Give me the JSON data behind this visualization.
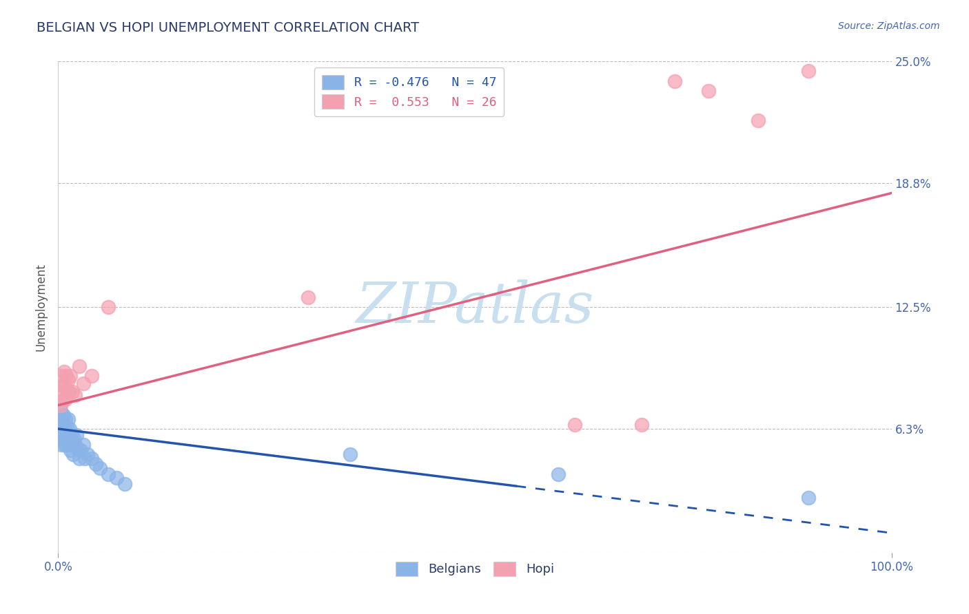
{
  "title": "BELGIAN VS HOPI UNEMPLOYMENT CORRELATION CHART",
  "source": "Source: ZipAtlas.com",
  "ylabel": "Unemployment",
  "xlim": [
    0,
    1.0
  ],
  "ylim": [
    0,
    0.25
  ],
  "yticks": [
    0.0,
    0.063,
    0.125,
    0.188,
    0.25
  ],
  "ytick_labels": [
    "",
    "6.3%",
    "12.5%",
    "18.8%",
    "25.0%"
  ],
  "xtick_labels": [
    "0.0%",
    "100.0%"
  ],
  "belgians_r": -0.476,
  "belgians_n": 47,
  "hopi_r": 0.553,
  "hopi_n": 26,
  "belgian_color": "#8ab4e8",
  "hopi_color": "#f4a0b0",
  "belgian_line_color": "#2255aa",
  "hopi_line_color": "#e06080",
  "background_color": "#ffffff",
  "grid_color": "#bbbbbb",
  "title_color": "#2a3a6a",
  "axis_label_color": "#4466aa",
  "watermark_color": "#c8dff0",
  "belgians_x": [
    0.001,
    0.002,
    0.003,
    0.003,
    0.004,
    0.004,
    0.005,
    0.005,
    0.006,
    0.006,
    0.007,
    0.007,
    0.008,
    0.008,
    0.009,
    0.009,
    0.01,
    0.01,
    0.011,
    0.011,
    0.012,
    0.012,
    0.013,
    0.014,
    0.015,
    0.015,
    0.016,
    0.017,
    0.018,
    0.019,
    0.02,
    0.022,
    0.024,
    0.025,
    0.027,
    0.03,
    0.032,
    0.035,
    0.04,
    0.045,
    0.05,
    0.06,
    0.07,
    0.08,
    0.35,
    0.6,
    0.9
  ],
  "belgians_y": [
    0.063,
    0.058,
    0.072,
    0.065,
    0.06,
    0.055,
    0.068,
    0.063,
    0.07,
    0.058,
    0.065,
    0.06,
    0.055,
    0.063,
    0.058,
    0.068,
    0.06,
    0.055,
    0.063,
    0.058,
    0.068,
    0.06,
    0.055,
    0.063,
    0.058,
    0.052,
    0.06,
    0.055,
    0.05,
    0.058,
    0.055,
    0.06,
    0.053,
    0.048,
    0.052,
    0.055,
    0.048,
    0.05,
    0.048,
    0.045,
    0.043,
    0.04,
    0.038,
    0.035,
    0.05,
    0.04,
    0.028
  ],
  "hopi_x": [
    0.002,
    0.003,
    0.004,
    0.005,
    0.006,
    0.007,
    0.008,
    0.009,
    0.01,
    0.011,
    0.012,
    0.013,
    0.015,
    0.017,
    0.02,
    0.025,
    0.03,
    0.04,
    0.06,
    0.3,
    0.62,
    0.7,
    0.74,
    0.78,
    0.84,
    0.9
  ],
  "hopi_y": [
    0.082,
    0.075,
    0.09,
    0.085,
    0.078,
    0.092,
    0.085,
    0.078,
    0.09,
    0.082,
    0.088,
    0.082,
    0.09,
    0.082,
    0.08,
    0.095,
    0.086,
    0.09,
    0.125,
    0.13,
    0.065,
    0.065,
    0.24,
    0.235,
    0.22,
    0.245
  ],
  "belgian_trend_x": [
    0.0,
    1.0
  ],
  "belgian_trend_y": [
    0.063,
    0.01
  ],
  "belgian_trend_solid_end": 0.55,
  "hopi_trend_x": [
    0.0,
    1.0
  ],
  "hopi_trend_y": [
    0.075,
    0.183
  ]
}
